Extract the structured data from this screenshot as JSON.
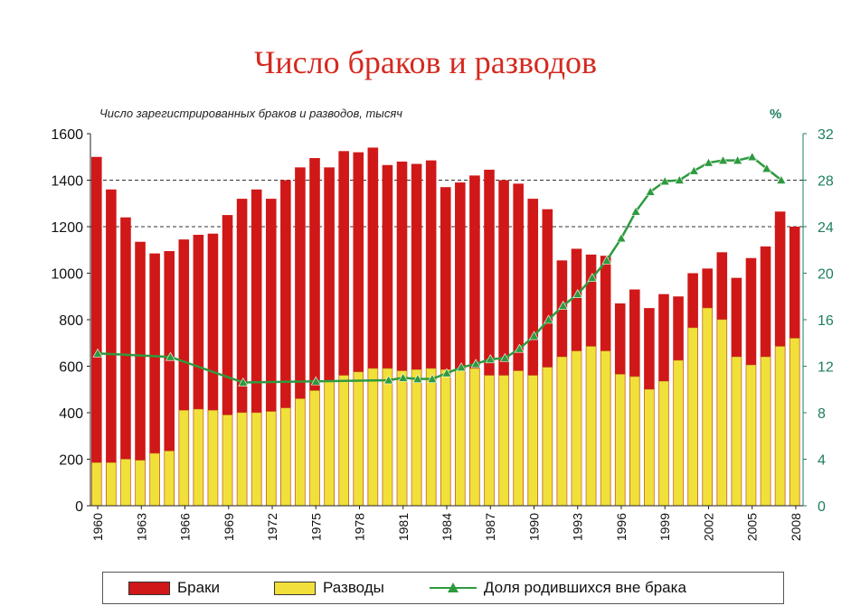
{
  "title": "Число браков и разводов",
  "chart_data": {
    "type": "bar",
    "subtitle": "Число зарегистрированных браков и разводов, тысяч",
    "right_axis_unit": "%",
    "years": [
      1960,
      1961,
      1962,
      1963,
      1964,
      1965,
      1966,
      1967,
      1968,
      1969,
      1970,
      1971,
      1972,
      1973,
      1974,
      1975,
      1976,
      1977,
      1978,
      1979,
      1980,
      1981,
      1982,
      1983,
      1984,
      1985,
      1986,
      1987,
      1988,
      1989,
      1990,
      1991,
      1992,
      1993,
      1994,
      1995,
      1996,
      1997,
      1998,
      1999,
      2000,
      2001,
      2002,
      2003,
      2004,
      2005,
      2006,
      2007,
      2008
    ],
    "x_tick_labels": [
      "1960",
      "1963",
      "1966",
      "1969",
      "1972",
      "1975",
      "1978",
      "1981",
      "1984",
      "1987",
      "1990",
      "1993",
      "1996",
      "1999",
      "2002",
      "2005",
      "2008"
    ],
    "y_left": {
      "range": [
        0,
        1600
      ],
      "ticks": [
        "0",
        "200",
        "400",
        "600",
        "800",
        "1000",
        "1200",
        "1400",
        "1600"
      ]
    },
    "y_right": {
      "range": [
        0,
        32
      ],
      "ticks": [
        "0",
        "4",
        "8",
        "12",
        "16",
        "20",
        "24",
        "28",
        "32"
      ]
    },
    "series": [
      {
        "name": "Браки",
        "axis": "left",
        "color": "#d01818",
        "values": [
          1500,
          1360,
          1240,
          1135,
          1085,
          1095,
          1145,
          1165,
          1170,
          1250,
          1320,
          1360,
          1320,
          1400,
          1455,
          1495,
          1455,
          1525,
          1520,
          1540,
          1465,
          1480,
          1470,
          1485,
          1370,
          1390,
          1420,
          1445,
          1400,
          1385,
          1320,
          1275,
          1055,
          1105,
          1080,
          1075,
          870,
          930,
          850,
          910,
          900,
          1000,
          1020,
          1090,
          980,
          1065,
          1115,
          1265,
          1200
        ]
      },
      {
        "name": "Разводы",
        "axis": "left",
        "color": "#f2e03a",
        "values": [
          185,
          185,
          200,
          195,
          225,
          235,
          410,
          415,
          410,
          390,
          400,
          400,
          405,
          420,
          460,
          495,
          535,
          560,
          575,
          590,
          590,
          580,
          585,
          590,
          585,
          585,
          590,
          560,
          560,
          580,
          560,
          595,
          640,
          665,
          685,
          665,
          565,
          555,
          500,
          535,
          625,
          765,
          850,
          800,
          640,
          605,
          640,
          685,
          720
        ]
      },
      {
        "name": "Доля родившихся вне брака",
        "axis": "right",
        "color": "#2e9a3e",
        "points": [
          [
            1960,
            13.1
          ],
          [
            1965,
            12.8
          ],
          [
            1970,
            10.6
          ],
          [
            1975,
            10.7
          ],
          [
            1980,
            10.8
          ],
          [
            1981,
            11.0
          ],
          [
            1982,
            10.9
          ],
          [
            1983,
            10.9
          ],
          [
            1984,
            11.4
          ],
          [
            1985,
            11.9
          ],
          [
            1986,
            12.2
          ],
          [
            1987,
            12.6
          ],
          [
            1988,
            12.7
          ],
          [
            1989,
            13.5
          ],
          [
            1990,
            14.6
          ],
          [
            1991,
            16.0
          ],
          [
            1992,
            17.2
          ],
          [
            1993,
            18.2
          ],
          [
            1994,
            19.6
          ],
          [
            1995,
            21.1
          ],
          [
            1996,
            23.0
          ],
          [
            1997,
            25.3
          ],
          [
            1998,
            27.0
          ],
          [
            1999,
            27.9
          ],
          [
            2000,
            28.0
          ],
          [
            2001,
            28.8
          ],
          [
            2002,
            29.5
          ],
          [
            2003,
            29.7
          ],
          [
            2004,
            29.7
          ],
          [
            2005,
            30.0
          ],
          [
            2006,
            29.0
          ],
          [
            2007,
            28.0
          ]
        ]
      }
    ],
    "legend": [
      "Браки",
      "Разводы",
      "Доля родившихся вне брака"
    ],
    "legend_position": "bottom",
    "grid": "horizontal dashed"
  }
}
